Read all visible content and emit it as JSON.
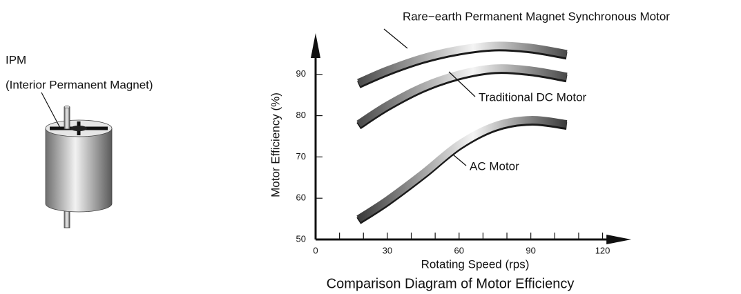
{
  "illustration": {
    "label": "IPM",
    "caption": "(Interior Permanent Magnet)"
  },
  "chart_data": {
    "type": "line",
    "title": "Comparison Diagram of Motor Efficiency",
    "x_label": "Rotating Speed (rps)",
    "y_label": "Motor Efficiency (%)",
    "x": [
      18,
      30,
      45,
      60,
      75,
      90,
      105
    ],
    "series": [
      {
        "name": "Rare−earth Permanent Magnet Synchronous Motor",
        "color": "#4a4a4a",
        "values": [
          88,
          91,
          94,
          96,
          97,
          96.5,
          95
        ]
      },
      {
        "name": "Traditional DC Motor",
        "color": "#4a4a4a",
        "values": [
          78,
          82.5,
          87,
          90,
          91.5,
          91,
          89.5
        ]
      },
      {
        "name": "AC Motor",
        "color": "#3a3a3a",
        "values": [
          55,
          59.5,
          66,
          73,
          77.5,
          79,
          78
        ]
      }
    ],
    "xlim": [
      0,
      132
    ],
    "ylim": [
      50,
      100
    ],
    "xticks": [
      0,
      30,
      60,
      90,
      120
    ],
    "xminor_ticks": [
      10,
      20,
      40,
      50,
      70,
      80,
      100,
      110
    ],
    "yticks": [
      50,
      60,
      70,
      80,
      90
    ]
  }
}
